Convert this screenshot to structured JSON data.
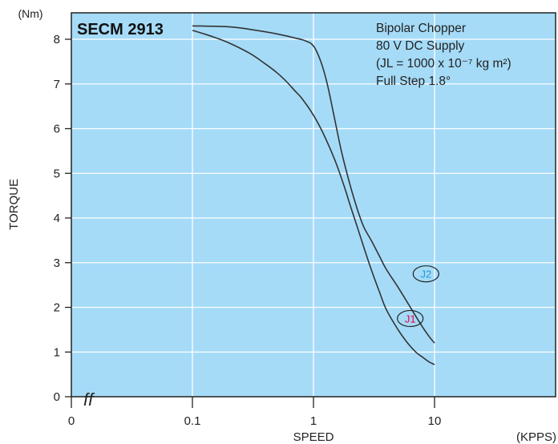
{
  "chart_data": {
    "type": "line",
    "title": "SECM 2913",
    "ylabel": "TORQUE",
    "yunit": "(Nm)",
    "xlabel": "SPEED",
    "xunit": "(KPPS)",
    "xscale": "log",
    "ylim": [
      0,
      8.5
    ],
    "y_ticks": [
      0,
      1,
      2,
      3,
      4,
      5,
      6,
      7,
      8
    ],
    "x_ticks": [
      {
        "value": 0,
        "label": "0"
      },
      {
        "value": 0.1,
        "label": "0.1"
      },
      {
        "value": 1,
        "label": "1"
      },
      {
        "value": 10,
        "label": "10"
      }
    ],
    "axis_break_label": "ff",
    "grid": true,
    "annotations": [
      "Bipolar Chopper",
      "80 V DC Supply",
      "(JL = 1000 x 10⁻⁷ kg m²)",
      "Full Step 1.8°"
    ],
    "series": [
      {
        "name": "J1",
        "color": "#e0004d",
        "points": [
          [
            0.1,
            8.2
          ],
          [
            0.15,
            8.05
          ],
          [
            0.2,
            7.92
          ],
          [
            0.3,
            7.68
          ],
          [
            0.4,
            7.45
          ],
          [
            0.5,
            7.25
          ],
          [
            0.6,
            7.05
          ],
          [
            0.7,
            6.85
          ],
          [
            0.8,
            6.68
          ],
          [
            1.0,
            6.3
          ],
          [
            1.2,
            5.9
          ],
          [
            1.5,
            5.3
          ],
          [
            1.8,
            4.7
          ],
          [
            2.0,
            4.3
          ],
          [
            2.3,
            3.8
          ],
          [
            2.6,
            3.35
          ],
          [
            3.0,
            2.85
          ],
          [
            3.5,
            2.35
          ],
          [
            4.0,
            1.95
          ],
          [
            5.0,
            1.5
          ],
          [
            6.0,
            1.2
          ],
          [
            7.0,
            1.0
          ],
          [
            8.0,
            0.88
          ],
          [
            9.0,
            0.78
          ],
          [
            10.0,
            0.72
          ]
        ]
      },
      {
        "name": "J2",
        "color": "#1a9ad6",
        "points": [
          [
            0.1,
            8.3
          ],
          [
            0.2,
            8.28
          ],
          [
            0.3,
            8.22
          ],
          [
            0.5,
            8.12
          ],
          [
            0.7,
            8.03
          ],
          [
            0.85,
            7.97
          ],
          [
            1.0,
            7.85
          ],
          [
            1.15,
            7.5
          ],
          [
            1.3,
            7.0
          ],
          [
            1.5,
            6.2
          ],
          [
            1.7,
            5.5
          ],
          [
            2.0,
            4.75
          ],
          [
            2.3,
            4.2
          ],
          [
            2.6,
            3.8
          ],
          [
            3.0,
            3.5
          ],
          [
            3.5,
            3.15
          ],
          [
            4.0,
            2.85
          ],
          [
            5.0,
            2.45
          ],
          [
            6.0,
            2.1
          ],
          [
            7.0,
            1.8
          ],
          [
            8.0,
            1.55
          ],
          [
            9.0,
            1.35
          ],
          [
            10.0,
            1.2
          ]
        ]
      }
    ]
  },
  "colors": {
    "plot_bg": "#a5dbf7",
    "grid": "#ffffff",
    "curve": "#333333",
    "frame": "#222222",
    "j1_label": "#e0004d",
    "j2_label": "#1a9ad6"
  }
}
